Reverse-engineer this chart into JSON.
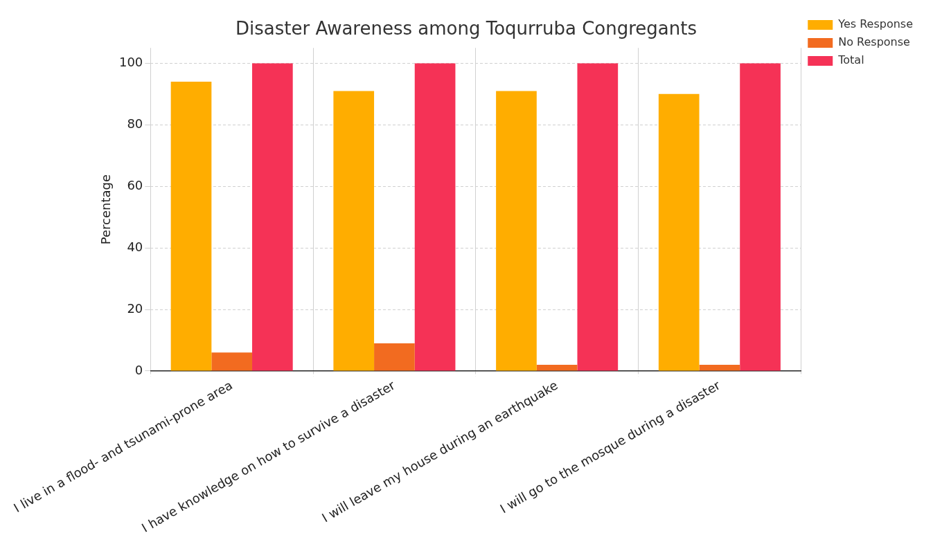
{
  "chart_data": {
    "type": "bar",
    "title": "Disaster Awareness among Toqurruba Congregants",
    "ylabel": "Percentage",
    "categories": [
      "I live in a flood- and tsunami-prone area",
      "I have knowledge on how to survive a disaster",
      "I will leave my house during an earthquake",
      "I will go to the mosque during a disaster"
    ],
    "series": [
      {
        "name": "Yes Response",
        "color": "#ffad00",
        "values": [
          94,
          91,
          91,
          90
        ]
      },
      {
        "name": "No Response",
        "color": "#f26b20",
        "values": [
          6,
          9,
          2,
          2
        ]
      },
      {
        "name": "Total",
        "color": "#f53256",
        "values": [
          100,
          100,
          100,
          100
        ]
      }
    ],
    "ylim": [
      0,
      105
    ],
    "yticks": [
      0,
      20,
      40,
      60,
      80,
      100
    ],
    "grid": true,
    "legend": "right"
  }
}
